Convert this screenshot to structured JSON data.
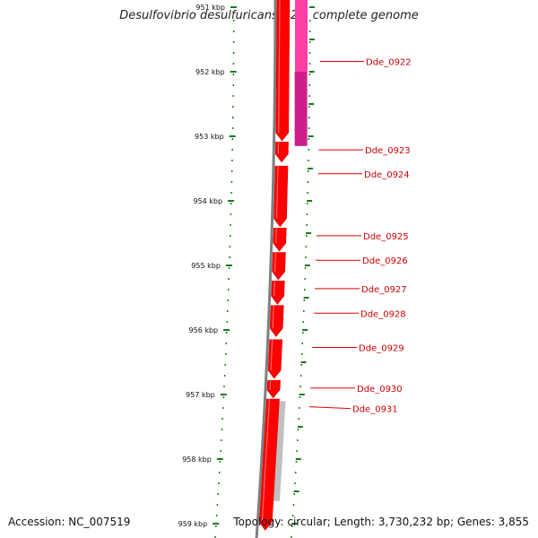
{
  "title": "Desulfovibrio desulfuricans G20, complete genome",
  "accession_label": "Accession: NC_007519",
  "summary_label": "Topology: circular; Length: 3,730,232 bp; Genes: 3,855",
  "scale_labels": [
    {
      "kb": 951,
      "text": "951 kbp"
    },
    {
      "kb": 952,
      "text": "952 kbp"
    },
    {
      "kb": 953,
      "text": "953 kbp"
    },
    {
      "kb": 954,
      "text": "954 kbp"
    },
    {
      "kb": 955,
      "text": "955 kbp"
    },
    {
      "kb": 956,
      "text": "956 kbp"
    },
    {
      "kb": 957,
      "text": "957 kbp"
    },
    {
      "kb": 958,
      "text": "958 kbp"
    },
    {
      "kb": 959,
      "text": "959 kbp"
    }
  ],
  "genes": [
    {
      "id": "Dde_0922",
      "start_kb": 951.84,
      "end_kb": 951.86,
      "strand": "+",
      "type": "tick"
    },
    {
      "id": "Dde_0923",
      "start_kb": 953.09,
      "end_kb": 953.4,
      "strand": "+",
      "type": "cds"
    },
    {
      "id": "Dde_0924",
      "start_kb": 953.46,
      "end_kb": 954.4,
      "strand": "+",
      "type": "cds"
    },
    {
      "id": "Dde_0925",
      "start_kb": 954.42,
      "end_kb": 954.78,
      "strand": "+",
      "type": "cds"
    },
    {
      "id": "Dde_0926",
      "start_kb": 954.8,
      "end_kb": 955.22,
      "strand": "+",
      "type": "cds"
    },
    {
      "id": "Dde_0927",
      "start_kb": 955.24,
      "end_kb": 955.6,
      "strand": "+",
      "type": "cds"
    },
    {
      "id": "Dde_0928",
      "start_kb": 955.62,
      "end_kb": 956.1,
      "strand": "+",
      "type": "cds"
    },
    {
      "id": "Dde_0929",
      "start_kb": 956.15,
      "end_kb": 956.75,
      "strand": "+",
      "type": "cds"
    },
    {
      "id": "Dde_0930",
      "start_kb": 956.78,
      "end_kb": 957.05,
      "strand": "+",
      "type": "cds"
    },
    {
      "id": "Dde_0931",
      "start_kb": 957.07,
      "end_kb": 959.1,
      "strand": "+",
      "type": "cds"
    }
  ],
  "outer_features": [
    {
      "start_kb": 950.8,
      "end_kb": 952.0,
      "color": "#ff3fa6"
    },
    {
      "start_kb": 952.0,
      "end_kb": 953.15,
      "color": "#cc1f8a"
    }
  ],
  "grey_features": [
    {
      "start_kb": 957.1,
      "end_kb": 958.65
    }
  ],
  "colors": {
    "cds": "#ff0000",
    "cds_shade": "#d40000",
    "gene_label": "#cc0000",
    "scale_tick": "#1a7a1a",
    "backbone": "#7f7f7f",
    "grey_feature": "#c0c0c0"
  }
}
